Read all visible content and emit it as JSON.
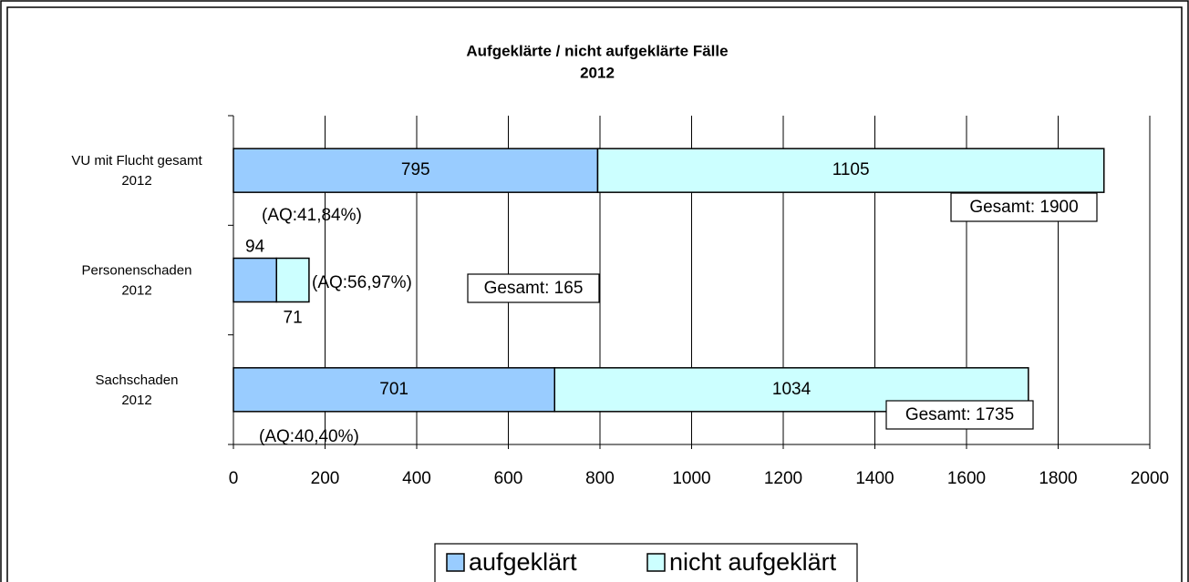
{
  "chart_data": {
    "type": "stacked_barh",
    "title": "Aufgeklärte / nicht aufgeklärte Fälle",
    "subtitle": "2012",
    "categories": [
      "VU mit Flucht gesamt\n2012",
      "Personenschaden\n2012",
      "Sachschaden\n2012"
    ],
    "series": [
      {
        "name": "aufgeklärt",
        "color": "#99ccff",
        "values": [
          795,
          94,
          701
        ]
      },
      {
        "name": "nicht aufgeklärt",
        "color": "#ccffff",
        "values": [
          1105,
          71,
          1034
        ]
      }
    ],
    "total_labels": [
      "Gesamt: 1900",
      "Gesamt: 165",
      "Gesamt: 1735"
    ],
    "rate_labels": [
      "(AQ:41,84%)",
      "(AQ:56,97%)",
      "(AQ:40,40%)"
    ],
    "xlim": [
      0,
      2000
    ],
    "xticks": [
      0,
      200,
      400,
      600,
      800,
      1000,
      1200,
      1400,
      1600,
      1800,
      2000
    ],
    "grid": true,
    "legend": "bottom"
  }
}
